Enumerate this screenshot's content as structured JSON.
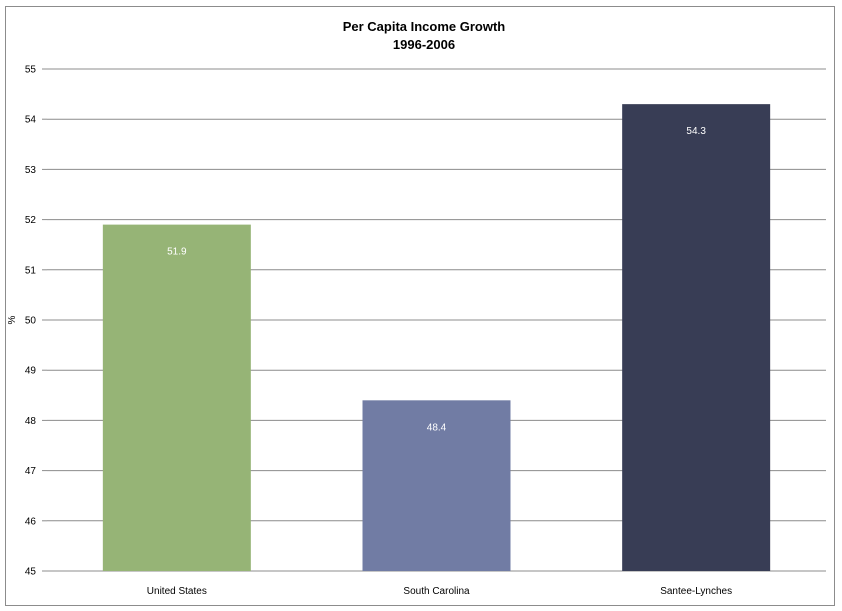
{
  "chart_data": {
    "type": "bar",
    "title": [
      "Per Capita Income Growth",
      "1996-2006"
    ],
    "xlabel": "",
    "ylabel": "%",
    "categories": [
      "United States",
      "South Carolina",
      "Santee-Lynches"
    ],
    "values": [
      51.9,
      48.4,
      54.3
    ],
    "data_labels": [
      "51.9",
      "48.4",
      "54.3"
    ],
    "bar_colors": [
      "#96b476",
      "#717ca4",
      "#383d55"
    ],
    "ylim": [
      45,
      55
    ],
    "yticks": [
      45,
      46,
      47,
      48,
      49,
      50,
      51,
      52,
      53,
      54,
      55
    ],
    "grid": true,
    "legend": "none"
  }
}
